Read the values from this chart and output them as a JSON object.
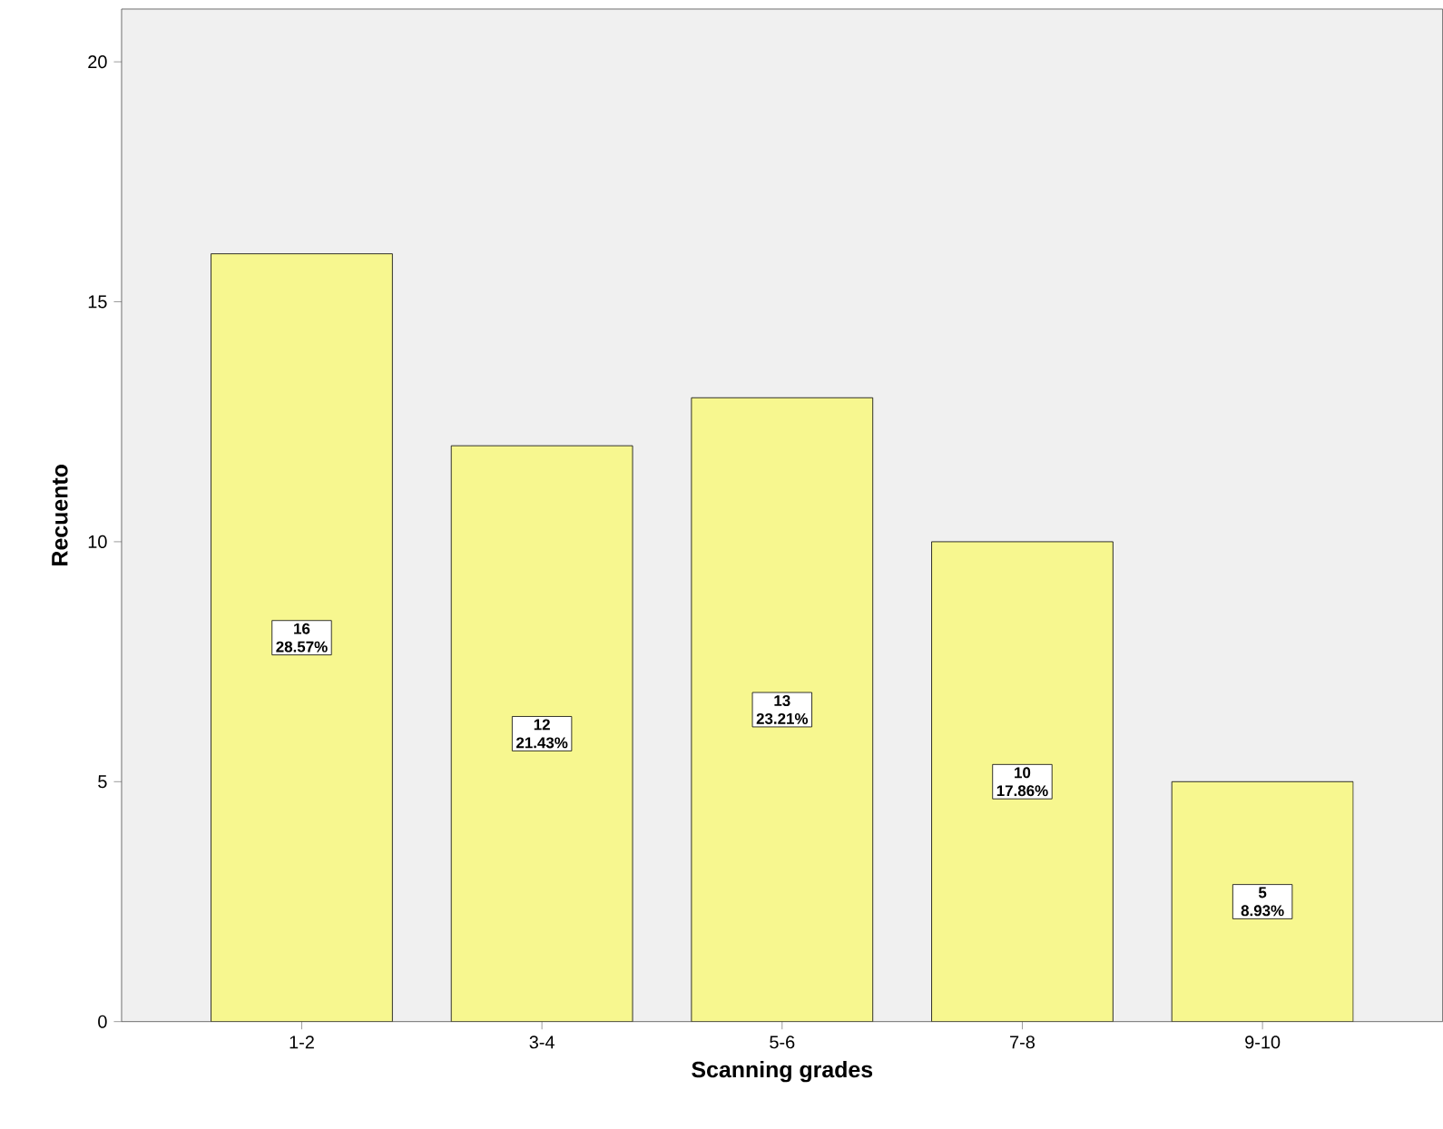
{
  "chart_data": {
    "type": "bar",
    "xlabel": "Scanning grades",
    "ylabel": "Recuento",
    "categories": [
      "1-2",
      "3-4",
      "5-6",
      "7-8",
      "9-10"
    ],
    "values": [
      16,
      12,
      13,
      10,
      5
    ],
    "value_labels": [
      "16 28.57%",
      "12 21.43%",
      "13 23.21%",
      "10 17.86%",
      "5 8.93%"
    ],
    "color": "#f7f78f",
    "ylim": [
      0,
      21.1
    ],
    "yticks": [
      0,
      5,
      10,
      15,
      20
    ]
  }
}
